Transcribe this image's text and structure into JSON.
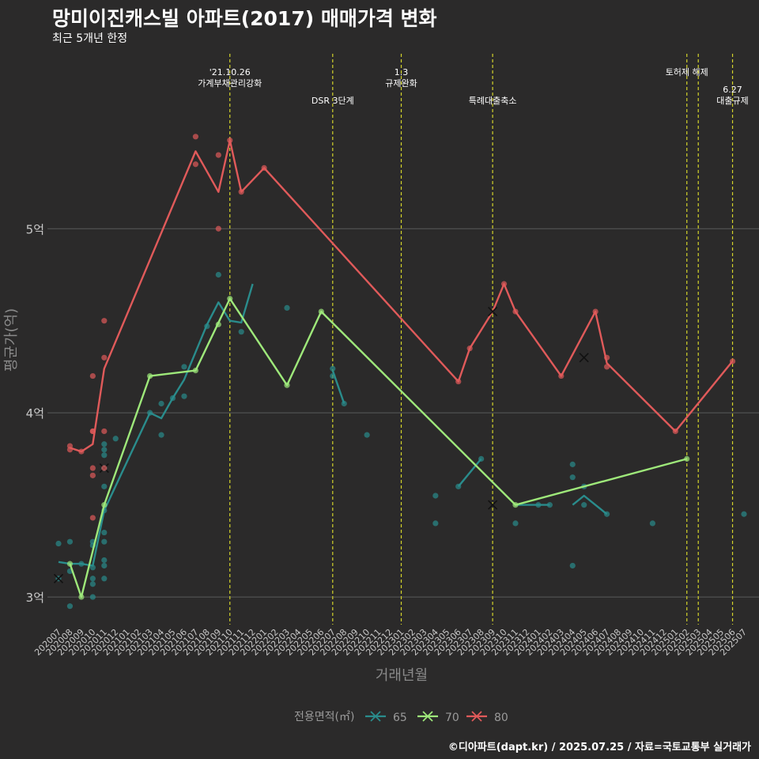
{
  "header": {
    "title": "망미이진캐스빌 아파트(2017) 매매가격 변화",
    "subtitle": "최근 5개년 한정",
    "caption": "©디아파트(dapt.kr) / 2025.07.25 / 자료=국토교통부 실거래가"
  },
  "colors": {
    "background": "#2b2a2a",
    "grid": "#5a5a5a",
    "event_line": "#d4d42a",
    "s65": "#2a8c8c",
    "s70": "#9ee87a",
    "s80": "#e05a5a"
  },
  "chart_data": {
    "type": "line",
    "title": "망미이진캐스빌 아파트(2017) 매매가격 변화",
    "subtitle": "최근 5개년 한정",
    "xlabel": "거래년월",
    "ylabel": "평균가(억)",
    "ylim": [
      2.85,
      5.95
    ],
    "yticks": [
      3,
      4,
      5
    ],
    "ytick_labels": [
      "3억",
      "4억",
      "5억"
    ],
    "grid": "horizontal",
    "legend_position": "bottom",
    "legend_title": "전용면적(㎡)",
    "categories": [
      "202007",
      "202008",
      "202009",
      "202010",
      "202011",
      "202012",
      "202101",
      "202102",
      "202103",
      "202104",
      "202105",
      "202106",
      "202107",
      "202108",
      "202109",
      "202110",
      "202111",
      "202112",
      "202201",
      "202202",
      "202203",
      "202204",
      "202205",
      "202206",
      "202207",
      "202208",
      "202209",
      "202210",
      "202211",
      "202212",
      "202301",
      "202302",
      "202303",
      "202304",
      "202305",
      "202306",
      "202307",
      "202308",
      "202309",
      "202310",
      "202311",
      "202312",
      "202401",
      "202402",
      "202403",
      "202404",
      "202405",
      "202406",
      "202407",
      "202408",
      "202409",
      "202410",
      "202411",
      "202412",
      "202501",
      "202502",
      "202503",
      "202504",
      "202505",
      "202506",
      "202507"
    ],
    "series": [
      {
        "name": "65",
        "color": "#2a8c8c",
        "line": [
          [
            [
              "202007",
              3.19
            ],
            [
              "202008",
              3.18
            ],
            [
              "202009",
              3.18
            ],
            [
              "202010",
              3.17
            ],
            [
              "202011",
              3.47
            ],
            [
              "202103",
              4.0
            ],
            [
              "202104",
              3.97
            ],
            [
              "202105",
              4.08
            ],
            [
              "202106",
              4.18
            ],
            [
              "202107",
              4.33
            ],
            [
              "202108",
              4.48
            ],
            [
              "202109",
              4.6
            ],
            [
              "202110",
              4.5
            ],
            [
              "202111",
              4.49
            ],
            [
              "202112",
              4.7
            ]
          ],
          [
            [
              "202207",
              4.23
            ],
            [
              "202208",
              4.05
            ]
          ],
          [
            [
              "202306",
              3.6
            ],
            [
              "202308",
              3.75
            ]
          ],
          [
            [
              "202311",
              3.5
            ],
            [
              "202401",
              3.5
            ],
            [
              "202402",
              3.5
            ]
          ],
          [
            [
              "202404",
              3.5
            ],
            [
              "202405",
              3.55
            ],
            [
              "202407",
              3.45
            ]
          ]
        ],
        "points": [
          [
            "202007",
            3.1
          ],
          [
            "202007",
            3.29
          ],
          [
            "202008",
            2.95
          ],
          [
            "202008",
            3.3
          ],
          [
            "202008",
            3.14
          ],
          [
            "202009",
            3.18
          ],
          [
            "202010",
            3.0
          ],
          [
            "202010",
            3.07
          ],
          [
            "202010",
            3.1
          ],
          [
            "202010",
            3.16
          ],
          [
            "202010",
            3.28
          ],
          [
            "202010",
            3.3
          ],
          [
            "202011",
            3.1
          ],
          [
            "202011",
            3.17
          ],
          [
            "202011",
            3.2
          ],
          [
            "202011",
            3.3
          ],
          [
            "202011",
            3.35
          ],
          [
            "202011",
            3.47
          ],
          [
            "202011",
            3.6
          ],
          [
            "202011",
            3.7
          ],
          [
            "202011",
            3.77
          ],
          [
            "202011",
            3.8
          ],
          [
            "202011",
            3.83
          ],
          [
            "202012",
            3.86
          ],
          [
            "202103",
            4.0
          ],
          [
            "202104",
            3.88
          ],
          [
            "202104",
            4.05
          ],
          [
            "202105",
            4.08
          ],
          [
            "202106",
            4.09
          ],
          [
            "202106",
            4.25
          ],
          [
            "202108",
            4.47
          ],
          [
            "202109",
            4.75
          ],
          [
            "202111",
            4.44
          ],
          [
            "202203",
            4.57
          ],
          [
            "202207",
            4.2
          ],
          [
            "202207",
            4.24
          ],
          [
            "202208",
            4.05
          ],
          [
            "202210",
            3.88
          ],
          [
            "202304",
            3.55
          ],
          [
            "202304",
            3.4
          ],
          [
            "202306",
            3.6
          ],
          [
            "202308",
            3.75
          ],
          [
            "202311",
            3.4
          ],
          [
            "202401",
            3.5
          ],
          [
            "202402",
            3.5
          ],
          [
            "202404",
            3.72
          ],
          [
            "202404",
            3.65
          ],
          [
            "202404",
            3.17
          ],
          [
            "202405",
            3.5
          ],
          [
            "202405",
            3.6
          ],
          [
            "202407",
            3.45
          ],
          [
            "202411",
            3.4
          ],
          [
            "202507",
            3.45
          ]
        ],
        "cancelled": [
          [
            "202007",
            3.1
          ],
          [
            "202011",
            3.7
          ],
          [
            "202309",
            3.5
          ]
        ]
      },
      {
        "name": "70",
        "color": "#9ee87a",
        "line": [
          [
            [
              "202008",
              3.18
            ],
            [
              "202009",
              3.0
            ],
            [
              "202011",
              3.5
            ],
            [
              "202103",
              4.2
            ],
            [
              "202107",
              4.23
            ],
            [
              "202110",
              4.62
            ],
            [
              "202203",
              4.15
            ],
            [
              "202206",
              4.55
            ],
            [
              "202311",
              3.5
            ],
            [
              "202502",
              3.75
            ]
          ]
        ],
        "points": [
          [
            "202008",
            3.18
          ],
          [
            "202009",
            3.0
          ],
          [
            "202011",
            3.5
          ],
          [
            "202103",
            4.2
          ],
          [
            "202107",
            4.23
          ],
          [
            "202109",
            4.48
          ],
          [
            "202110",
            4.62
          ],
          [
            "202203",
            4.15
          ],
          [
            "202206",
            4.55
          ],
          [
            "202311",
            3.5
          ],
          [
            "202502",
            3.75
          ]
        ],
        "cancelled": []
      },
      {
        "name": "80",
        "color": "#e05a5a",
        "line": [
          [
            [
              "202008",
              3.81
            ],
            [
              "202009",
              3.79
            ],
            [
              "202010",
              3.83
            ],
            [
              "202011",
              4.24
            ],
            [
              "202107",
              5.42
            ],
            [
              "202109",
              5.2
            ],
            [
              "202110",
              5.48
            ],
            [
              "202111",
              5.2
            ],
            [
              "202201",
              5.33
            ],
            [
              "202306",
              4.17
            ],
            [
              "202307",
              4.35
            ],
            [
              "202309",
              4.55
            ],
            [
              "202310",
              4.7
            ],
            [
              "202311",
              4.55
            ],
            [
              "202403",
              4.2
            ],
            [
              "202406",
              4.55
            ],
            [
              "202407",
              4.27
            ],
            [
              "202501",
              3.9
            ],
            [
              "202506",
              4.28
            ]
          ]
        ],
        "points": [
          [
            "202008",
            3.8
          ],
          [
            "202008",
            3.82
          ],
          [
            "202009",
            3.79
          ],
          [
            "202010",
            3.9
          ],
          [
            "202010",
            3.9
          ],
          [
            "202010",
            4.2
          ],
          [
            "202010",
            3.7
          ],
          [
            "202010",
            3.66
          ],
          [
            "202010",
            3.43
          ],
          [
            "202011",
            4.5
          ],
          [
            "202011",
            4.3
          ],
          [
            "202011",
            3.9
          ],
          [
            "202011",
            3.7
          ],
          [
            "202107",
            5.5
          ],
          [
            "202107",
            5.35
          ],
          [
            "202109",
            5.4
          ],
          [
            "202109",
            5.0
          ],
          [
            "202110",
            5.48
          ],
          [
            "202111",
            5.2
          ],
          [
            "202201",
            5.33
          ],
          [
            "202306",
            4.17
          ],
          [
            "202307",
            4.35
          ],
          [
            "202310",
            4.7
          ],
          [
            "202311",
            4.55
          ],
          [
            "202403",
            4.2
          ],
          [
            "202406",
            4.55
          ],
          [
            "202407",
            4.25
          ],
          [
            "202407",
            4.3
          ],
          [
            "202501",
            3.9
          ],
          [
            "202506",
            4.28
          ]
        ],
        "cancelled": [
          [
            "202309",
            4.55
          ],
          [
            "202405",
            4.3
          ]
        ]
      }
    ],
    "events": [
      {
        "at": "202110",
        "lines": [
          "'21.10.26",
          "가계부채관리강화"
        ],
        "row": 0
      },
      {
        "at": "202207",
        "lines": [
          "DSR 3단계"
        ],
        "row": 1
      },
      {
        "at": "202301",
        "lines": [
          "1.3",
          "규제완화"
        ],
        "row": 0
      },
      {
        "at": "202309",
        "lines": [
          "특례대출축소"
        ],
        "row": 1
      },
      {
        "at": "202502",
        "lines": [
          "토허제 해제"
        ],
        "row": 0
      },
      {
        "at": "202503",
        "lines": [],
        "row": 0
      },
      {
        "at": "202506",
        "lines": [
          "6.27",
          "대출규제"
        ],
        "row": 1
      }
    ]
  }
}
